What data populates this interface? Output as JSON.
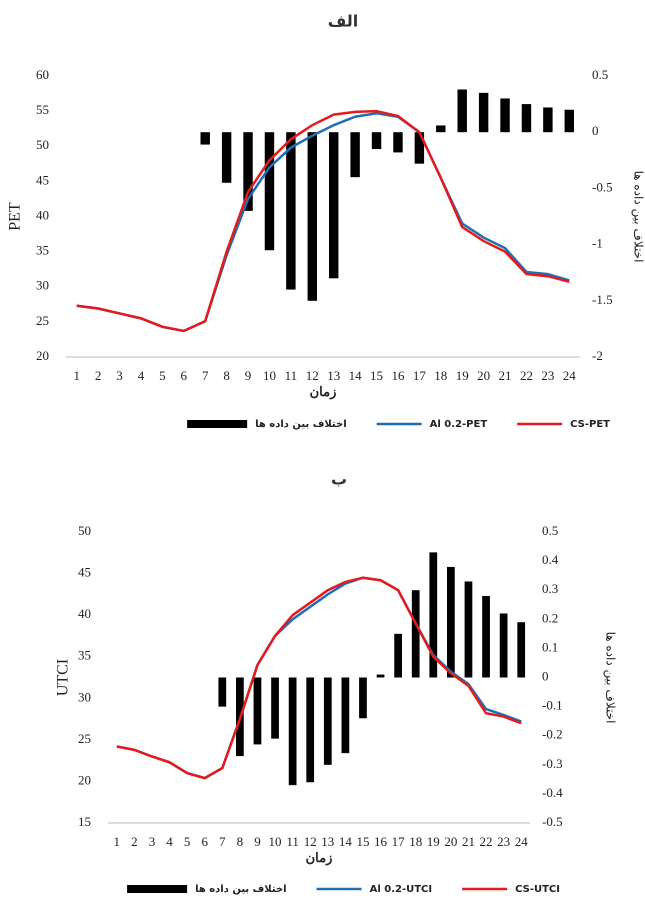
{
  "chart_data": [
    {
      "type": "bar-line",
      "title": "الف",
      "x_label": "زمان",
      "y_label": "PET",
      "y2_label": "اختلاف بین داده ها",
      "categories": [
        "1",
        "2",
        "3",
        "4",
        "5",
        "6",
        "7",
        "8",
        "9",
        "10",
        "11",
        "12",
        "13",
        "14",
        "15",
        "16",
        "17",
        "18",
        "19",
        "20",
        "21",
        "22",
        "23",
        "24"
      ],
      "ylim": [
        20,
        60
      ],
      "yticks": [
        20,
        25,
        30,
        35,
        40,
        45,
        50,
        55,
        60
      ],
      "y2lim": [
        -2,
        0.5
      ],
      "y2ticks": [
        -2,
        -1.5,
        -1,
        -0.5,
        0,
        0.5
      ],
      "series": [
        {
          "name": "اختلاف بین داده ها",
          "type": "bar",
          "axis": "y2",
          "color": "#000000",
          "values": [
            null,
            null,
            null,
            null,
            null,
            null,
            -0.11,
            -0.45,
            -0.7,
            -1.05,
            -1.4,
            -1.5,
            -1.3,
            -0.4,
            -0.15,
            -0.18,
            -0.28,
            0.06,
            0.38,
            0.35,
            0.3,
            0.25,
            0.22,
            0.2
          ]
        },
        {
          "name": "Al 0.2-PET",
          "type": "line",
          "color": "#1f6fb5",
          "values": [
            27.3,
            26.9,
            26.2,
            25.5,
            24.3,
            23.7,
            25.1,
            34.5,
            42.5,
            47,
            49.8,
            51.5,
            53,
            54.2,
            54.7,
            54.2,
            52,
            45.5,
            39,
            37,
            35.5,
            32.1,
            31.8,
            30.9
          ]
        },
        {
          "name": "CS-PET",
          "type": "line",
          "color": "#e31b1b",
          "values": [
            27.3,
            26.9,
            26.2,
            25.5,
            24.3,
            23.7,
            25.1,
            35,
            43.5,
            48,
            51,
            53,
            54.5,
            54.9,
            55,
            54.3,
            52,
            45.5,
            38.5,
            36.5,
            35,
            31.8,
            31.5,
            30.7
          ]
        }
      ]
    },
    {
      "type": "bar-line",
      "title": "ب",
      "x_label": "زمان",
      "y_label": "UTCI",
      "y2_label": "اختلاف بین داده ها",
      "categories": [
        "1",
        "2",
        "3",
        "4",
        "5",
        "6",
        "7",
        "8",
        "9",
        "10",
        "11",
        "12",
        "13",
        "14",
        "15",
        "16",
        "17",
        "18",
        "19",
        "20",
        "21",
        "22",
        "23",
        "24"
      ],
      "ylim": [
        15,
        50
      ],
      "yticks": [
        15,
        20,
        25,
        30,
        35,
        40,
        45,
        50
      ],
      "y2lim": [
        -0.5,
        0.5
      ],
      "y2ticks": [
        -0.5,
        -0.4,
        -0.3,
        -0.2,
        -0.1,
        0,
        0.1,
        0.2,
        0.3,
        0.4,
        0.5
      ],
      "series": [
        {
          "name": "اختلاف بین داده ها",
          "type": "bar",
          "axis": "y2",
          "color": "#000000",
          "values": [
            null,
            null,
            null,
            null,
            null,
            null,
            -0.1,
            -0.27,
            -0.23,
            -0.21,
            -0.37,
            -0.36,
            -0.3,
            -0.26,
            -0.14,
            0.01,
            0.15,
            0.3,
            0.43,
            0.38,
            0.33,
            0.28,
            0.22,
            0.19
          ]
        },
        {
          "name": "Al 0.2-UTCI",
          "type": "line",
          "color": "#1f6fb5",
          "values": [
            24.2,
            23.8,
            23,
            22.3,
            21,
            20.4,
            21.6,
            27.5,
            34,
            37.5,
            39.5,
            41,
            42.5,
            43.8,
            44.5,
            44.2,
            43,
            39,
            35.2,
            33.2,
            31.7,
            28.7,
            28,
            27.2
          ]
        },
        {
          "name": "CS-UTCI",
          "type": "line",
          "color": "#e31b1b",
          "values": [
            24.2,
            23.8,
            23,
            22.3,
            21,
            20.4,
            21.6,
            27.5,
            34,
            37.5,
            40,
            41.5,
            43,
            44,
            44.5,
            44.2,
            43,
            39,
            35,
            33,
            31.5,
            28.2,
            27.8,
            27
          ]
        }
      ]
    }
  ]
}
